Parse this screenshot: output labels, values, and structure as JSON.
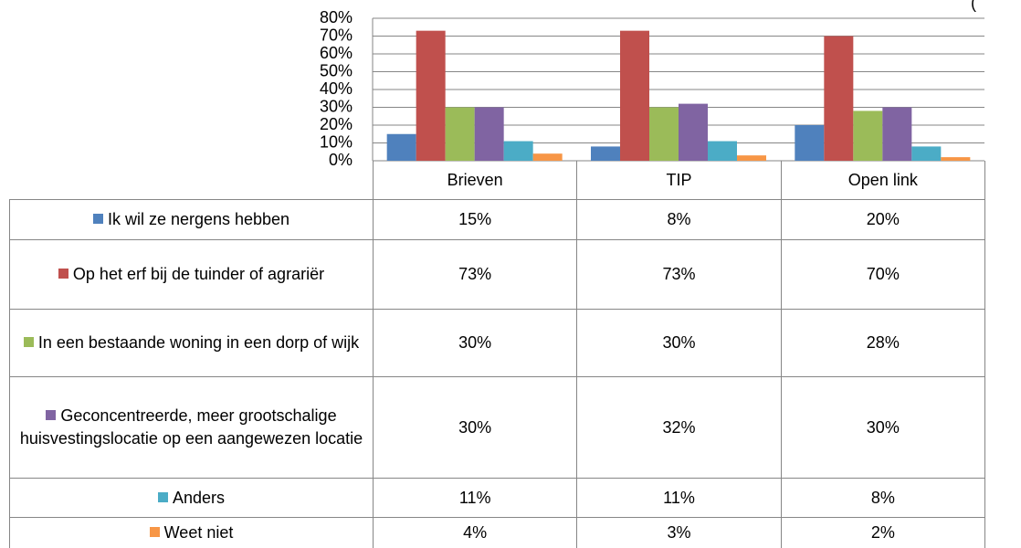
{
  "chart_data": {
    "type": "bar",
    "title": "(",
    "categories": [
      "Brieven",
      "TIP",
      "Open link"
    ],
    "series": [
      {
        "name": "Ik wil ze nergens hebben",
        "color": "#4f81bd",
        "values": [
          15,
          8,
          20
        ],
        "value_labels": [
          "15%",
          "8%",
          "20%"
        ]
      },
      {
        "name": "Op het erf bij de tuinder of agrariër",
        "color": "#c0504d",
        "values": [
          73,
          73,
          70
        ],
        "value_labels": [
          "73%",
          "73%",
          "70%"
        ]
      },
      {
        "name": "In een bestaande woning in een dorp of wijk",
        "color": "#9bbb59",
        "values": [
          30,
          30,
          28
        ],
        "value_labels": [
          "30%",
          "30%",
          "28%"
        ]
      },
      {
        "name": "Geconcentreerde, meer grootschalige huisvestingslocatie op een aangewezen locatie",
        "color": "#8064a2",
        "values": [
          30,
          32,
          30
        ],
        "value_labels": [
          "30%",
          "32%",
          "30%"
        ]
      },
      {
        "name": "Anders",
        "color": "#4bacc6",
        "values": [
          11,
          11,
          8
        ],
        "value_labels": [
          "11%",
          "11%",
          "8%"
        ]
      },
      {
        "name": "Weet niet",
        "color": "#f79646",
        "values": [
          4,
          3,
          2
        ],
        "value_labels": [
          "4%",
          "3%",
          "2%"
        ]
      }
    ],
    "ylim": [
      0,
      80
    ],
    "yticks": [
      {
        "value": 0,
        "label": "0%"
      },
      {
        "value": 10,
        "label": "10%"
      },
      {
        "value": 20,
        "label": "20%"
      },
      {
        "value": 30,
        "label": "30%"
      },
      {
        "value": 40,
        "label": "40%"
      },
      {
        "value": 50,
        "label": "50%"
      },
      {
        "value": 60,
        "label": "60%"
      },
      {
        "value": 70,
        "label": "70%"
      },
      {
        "value": 80,
        "label": "80%"
      }
    ],
    "grid": true
  }
}
